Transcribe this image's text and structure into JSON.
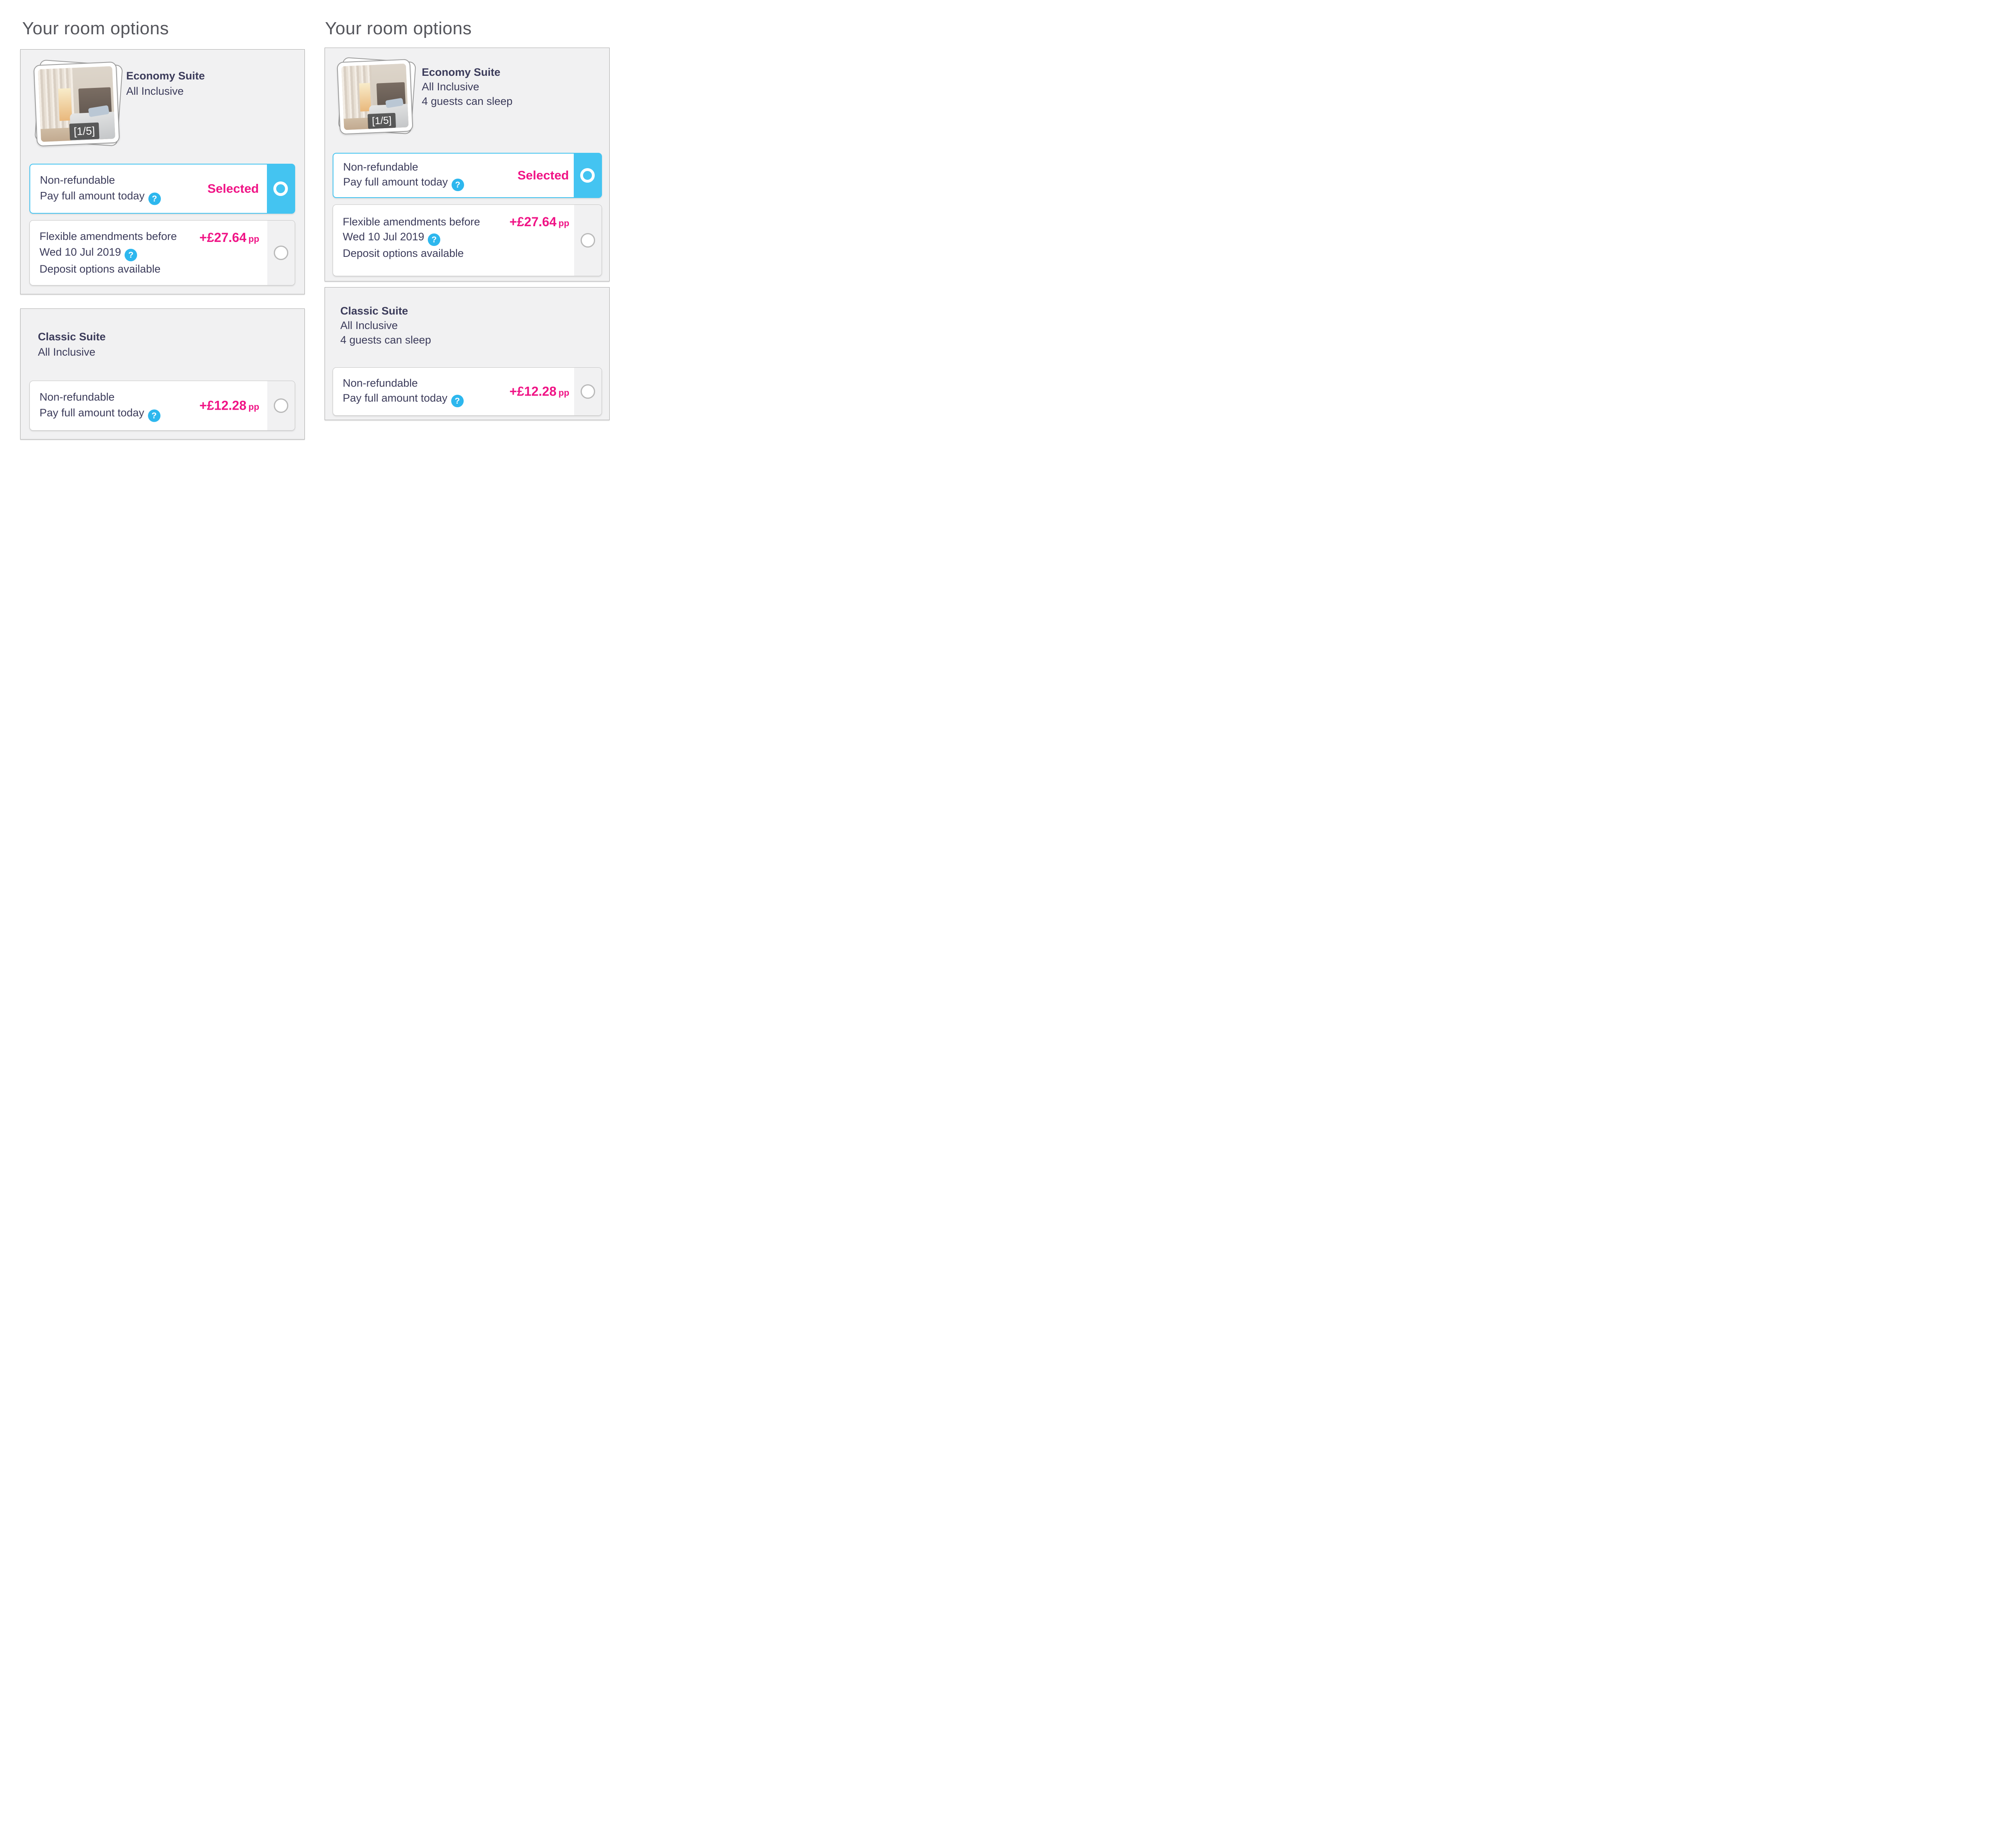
{
  "colors": {
    "accent_blue": "#44c4f1",
    "help_blue": "#2db7ee",
    "accent_pink": "#f01486",
    "text_navy": "#3b3b5a",
    "title_gray": "#55565c",
    "card_bg": "#f1f1f2",
    "card_border": "#a9a9a9"
  },
  "panels": [
    {
      "title": "Your room options",
      "rooms": [
        {
          "name": "Economy Suite",
          "board": "All Inclusive",
          "image_counter": "[1/5]",
          "options": [
            {
              "title": "Non-refundable",
              "subtitle": "Pay full amount today",
              "help": "?",
              "status": "Selected"
            },
            {
              "title": "Flexible amendments before",
              "subtitle": "Wed 10 Jul 2019",
              "help": "?",
              "line3": "Deposit options available",
              "price": "+£27.64",
              "price_unit": "pp"
            }
          ]
        },
        {
          "name": "Classic Suite",
          "board": "All Inclusive",
          "options": [
            {
              "title": "Non-refundable",
              "subtitle": "Pay full amount today",
              "help": "?",
              "price": "+£12.28",
              "price_unit": "pp"
            }
          ]
        }
      ]
    },
    {
      "title": "Your room options",
      "rooms": [
        {
          "name": "Economy Suite",
          "board": "All Inclusive",
          "occupancy": "4 guests can sleep",
          "image_counter": "[1/5]",
          "options": [
            {
              "title": "Non-refundable",
              "subtitle": "Pay full amount today",
              "help": "?",
              "status": "Selected"
            },
            {
              "title": "Flexible amendments before",
              "subtitle": "Wed 10 Jul 2019",
              "help": "?",
              "line3": "Deposit options available",
              "price": "+£27.64",
              "price_unit": "pp"
            }
          ]
        },
        {
          "name": "Classic Suite",
          "board": "All Inclusive",
          "occupancy": "4 guests can sleep",
          "options": [
            {
              "title": "Non-refundable",
              "subtitle": "Pay full amount today",
              "help": "?",
              "price": "+£12.28",
              "price_unit": "pp"
            }
          ]
        }
      ]
    }
  ]
}
